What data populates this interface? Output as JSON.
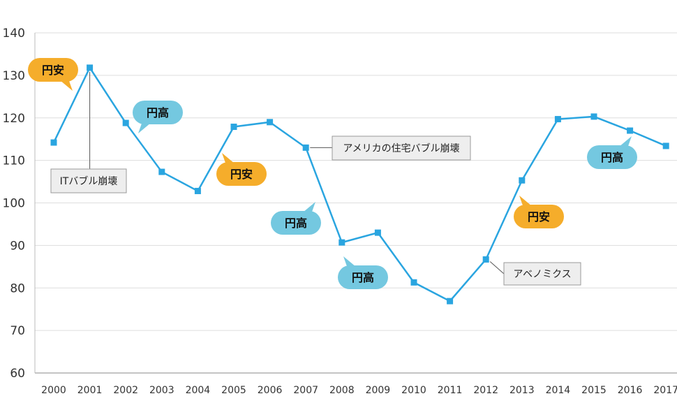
{
  "chart_data": {
    "type": "line",
    "x": [
      "2000",
      "2001",
      "2002",
      "2003",
      "2004",
      "2005",
      "2006",
      "2007",
      "2008",
      "2009",
      "2010",
      "2011",
      "2012",
      "2013",
      "2014",
      "2015",
      "2016",
      "2017"
    ],
    "values": [
      114.2,
      131.8,
      118.8,
      107.3,
      102.8,
      117.9,
      119.0,
      113.0,
      90.7,
      93.0,
      81.3,
      76.9,
      86.7,
      105.3,
      119.7,
      120.3,
      117.0,
      113.4
    ],
    "ylim": [
      60,
      140
    ],
    "yticks": [
      60,
      70,
      80,
      90,
      100,
      110,
      120,
      130,
      140
    ],
    "grid": true,
    "line_color": "#2aa5e0",
    "annotations": [
      {
        "text": "ITバブル崩壊",
        "year": "2001"
      },
      {
        "text": "アメリカの住宅バブル崩壊",
        "year": "2007"
      },
      {
        "text": "アベノミクス",
        "year": "2012"
      }
    ],
    "bubbles": [
      {
        "text": "円安",
        "kind": "weak-yen",
        "near": "2000"
      },
      {
        "text": "円高",
        "kind": "strong-yen",
        "near": "2002"
      },
      {
        "text": "円安",
        "kind": "weak-yen",
        "near": "2005"
      },
      {
        "text": "円高",
        "kind": "strong-yen",
        "near": "2007"
      },
      {
        "text": "円高",
        "kind": "strong-yen",
        "near": "2009"
      },
      {
        "text": "円安",
        "kind": "weak-yen",
        "near": "2013"
      },
      {
        "text": "円高",
        "kind": "strong-yen",
        "near": "2016"
      }
    ],
    "colors": {
      "weak-yen": "#f5ad2b",
      "strong-yen": "#74c8e0",
      "note_bg": "#eeeeee",
      "note_border": "#999999",
      "grid": "#dddddd"
    }
  }
}
